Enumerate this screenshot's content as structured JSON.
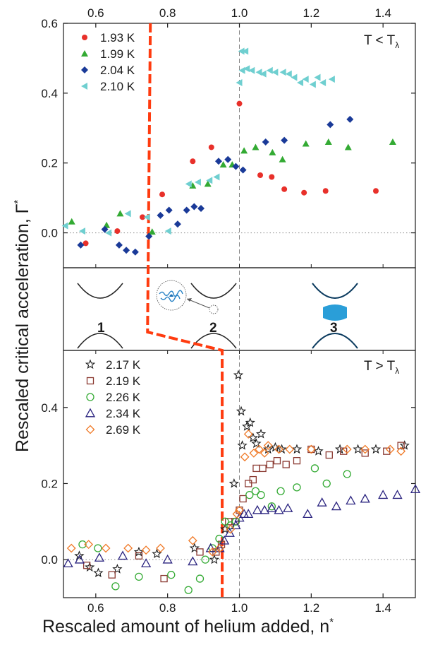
{
  "chart_data": {
    "type": "scatter",
    "xlabel": "Rescaled amount of helium added, n",
    "xlabel_sup": "*",
    "ylabel": "Rescaled critical acceleration, Γ",
    "ylabel_sup": "*",
    "xlim": [
      0.51,
      1.49
    ],
    "x_ticks": [
      "0.6",
      "0.8",
      "1.0",
      "1.2",
      "1.4"
    ],
    "x_tick_values": [
      0.6,
      0.8,
      1.0,
      1.2,
      1.4
    ],
    "reference_vline_x": 1.0,
    "phase_boundary_line": {
      "color": "#ff3b0f",
      "style": "dashed",
      "upper_x": 0.752,
      "lower_x": 0.952,
      "upper_connection_end": 0.75,
      "lower_connection_end": 0.95
    },
    "panels": [
      {
        "id": "top",
        "condition": "T < T",
        "condition_sub": "λ",
        "ylim": [
          -0.1,
          0.6
        ],
        "y_ticks": [
          "0.0",
          "0.2",
          "0.4",
          "0.6"
        ],
        "y_tick_values": [
          0.0,
          0.2,
          0.4,
          0.6
        ],
        "reference_hline_y": 0.0,
        "legend_position": "top-left",
        "series": [
          {
            "name": "1.93 K",
            "marker": "circle",
            "filled": true,
            "color": "#e8302a",
            "points": [
              [
                0.572,
                -0.03
              ],
              [
                0.66,
                0.005
              ],
              [
                0.73,
                0.045
              ],
              [
                0.785,
                0.11
              ],
              [
                0.87,
                0.205
              ],
              [
                0.922,
                0.245
              ],
              [
                1.0,
                0.37
              ],
              [
                1.058,
                0.165
              ],
              [
                1.09,
                0.16
              ],
              [
                1.125,
                0.125
              ],
              [
                1.18,
                0.115
              ],
              [
                1.24,
                0.12
              ],
              [
                1.38,
                0.12
              ]
            ]
          },
          {
            "name": "1.99 K",
            "marker": "triangle-up",
            "filled": true,
            "color": "#33aa33",
            "points": [
              [
                0.533,
                0.032
              ],
              [
                0.63,
                0.022
              ],
              [
                0.668,
                0.055
              ],
              [
                0.757,
                0.003
              ],
              [
                0.87,
                0.135
              ],
              [
                0.912,
                0.14
              ],
              [
                0.955,
                0.195
              ],
              [
                0.98,
                0.195
              ],
              [
                1.013,
                0.235
              ],
              [
                1.045,
                0.245
              ],
              [
                1.092,
                0.23
              ],
              [
                1.12,
                0.21
              ],
              [
                1.185,
                0.255
              ],
              [
                1.248,
                0.26
              ],
              [
                1.303,
                0.245
              ],
              [
                1.427,
                0.26
              ]
            ]
          },
          {
            "name": "2.04 K",
            "marker": "diamond",
            "filled": true,
            "color": "#1a3a98",
            "points": [
              [
                0.558,
                -0.035
              ],
              [
                0.625,
                0.01
              ],
              [
                0.665,
                -0.035
              ],
              [
                0.685,
                -0.05
              ],
              [
                0.71,
                -0.055
              ],
              [
                0.748,
                -0.01
              ],
              [
                0.78,
                0.05
              ],
              [
                0.804,
                0.065
              ],
              [
                0.828,
                0.025
              ],
              [
                0.853,
                0.065
              ],
              [
                0.874,
                0.075
              ],
              [
                0.893,
                0.07
              ],
              [
                0.942,
                0.205
              ],
              [
                0.968,
                0.21
              ],
              [
                0.99,
                0.19
              ],
              [
                1.01,
                0.18
              ],
              [
                1.073,
                0.26
              ],
              [
                1.125,
                0.265
              ],
              [
                1.253,
                0.31
              ],
              [
                1.308,
                0.325
              ]
            ]
          },
          {
            "name": "2.10 K",
            "marker": "triangle-left",
            "filled": true,
            "color": "#6fcfd0",
            "points": [
              [
                0.515,
                0.02
              ],
              [
                0.563,
                0.005
              ],
              [
                0.636,
                0.0
              ],
              [
                0.69,
                0.055
              ],
              [
                0.743,
                0.045
              ],
              [
                0.802,
                0.005
              ],
              [
                0.859,
                0.14
              ],
              [
                0.885,
                0.145
              ],
              [
                0.917,
                0.15
              ],
              [
                0.937,
                0.16
              ],
              [
                1.0,
                0.43
              ],
              [
                1.006,
                0.52
              ],
              [
                1.017,
                0.52
              ],
              [
                1.008,
                0.465
              ],
              [
                1.021,
                0.47
              ],
              [
                1.035,
                0.465
              ],
              [
                1.055,
                0.46
              ],
              [
                1.067,
                0.455
              ],
              [
                1.085,
                0.465
              ],
              [
                1.1,
                0.46
              ],
              [
                1.122,
                0.46
              ],
              [
                1.138,
                0.455
              ],
              [
                1.153,
                0.445
              ],
              [
                1.17,
                0.43
              ],
              [
                1.185,
                0.44
              ],
              [
                1.205,
                0.425
              ],
              [
                1.218,
                0.445
              ],
              [
                1.233,
                0.43
              ],
              [
                1.258,
                0.44
              ]
            ]
          }
        ]
      },
      {
        "id": "bottom",
        "condition": "T > T",
        "condition_sub": "λ",
        "ylim": [
          -0.1,
          0.55
        ],
        "y_ticks": [
          "0.0",
          "0.2",
          "0.4"
        ],
        "y_tick_values": [
          0.0,
          0.2,
          0.4
        ],
        "reference_hline_y": 0.0,
        "legend_position": "top-left",
        "series": [
          {
            "name": "2.17 K",
            "marker": "star",
            "filled": false,
            "color": "#1a1a1a",
            "points": [
              [
                0.554,
                0.01
              ],
              [
                0.583,
                -0.02
              ],
              [
                0.607,
                -0.035
              ],
              [
                0.66,
                -0.025
              ],
              [
                0.72,
                0.02
              ],
              [
                0.77,
                0.015
              ],
              [
                0.875,
                0.03
              ],
              [
                0.93,
                0.0
              ],
              [
                0.96,
                0.08
              ],
              [
                0.985,
                0.2
              ],
              [
                0.997,
                0.485
              ],
              [
                1.005,
                0.39
              ],
              [
                1.008,
                0.3
              ],
              [
                1.021,
                0.35
              ],
              [
                1.03,
                0.36
              ],
              [
                1.038,
                0.32
              ],
              [
                1.047,
                0.305
              ],
              [
                1.06,
                0.33
              ],
              [
                1.08,
                0.29
              ],
              [
                1.1,
                0.295
              ],
              [
                1.118,
                0.29
              ],
              [
                1.16,
                0.29
              ],
              [
                1.22,
                0.285
              ],
              [
                1.28,
                0.29
              ],
              [
                1.33,
                0.29
              ],
              [
                1.38,
                0.29
              ],
              [
                1.46,
                0.3
              ]
            ]
          },
          {
            "name": "2.19 K",
            "marker": "square",
            "filled": false,
            "color": "#8b3a32",
            "points": [
              [
                0.575,
                -0.015
              ],
              [
                0.645,
                -0.04
              ],
              [
                0.72,
                0.01
              ],
              [
                0.79,
                -0.05
              ],
              [
                0.89,
                0.02
              ],
              [
                0.935,
                0.02
              ],
              [
                0.95,
                0.04
              ],
              [
                0.97,
                0.1
              ],
              [
                0.988,
                0.1
              ],
              [
                1.0,
                0.13
              ],
              [
                1.01,
                0.16
              ],
              [
                1.025,
                0.2
              ],
              [
                1.038,
                0.21
              ],
              [
                1.047,
                0.24
              ],
              [
                1.065,
                0.24
              ],
              [
                1.085,
                0.25
              ],
              [
                1.105,
                0.26
              ],
              [
                1.13,
                0.25
              ],
              [
                1.16,
                0.26
              ],
              [
                1.2,
                0.29
              ],
              [
                1.25,
                0.275
              ],
              [
                1.29,
                0.285
              ],
              [
                1.35,
                0.28
              ],
              [
                1.41,
                0.285
              ],
              [
                1.45,
                0.3
              ]
            ]
          },
          {
            "name": "2.26 K",
            "marker": "circle",
            "filled": false,
            "color": "#33aa33",
            "points": [
              [
                0.563,
                0.04
              ],
              [
                0.606,
                0.03
              ],
              [
                0.655,
                -0.07
              ],
              [
                0.72,
                -0.045
              ],
              [
                0.81,
                -0.04
              ],
              [
                0.858,
                -0.08
              ],
              [
                0.89,
                -0.05
              ],
              [
                0.905,
                0.0
              ],
              [
                0.925,
                0.03
              ],
              [
                0.944,
                0.055
              ],
              [
                0.96,
                0.1
              ],
              [
                0.975,
                0.09
              ],
              [
                0.99,
                0.1
              ],
              [
                1.028,
                0.17
              ],
              [
                1.045,
                0.18
              ],
              [
                1.06,
                0.17
              ],
              [
                1.09,
                0.14
              ],
              [
                1.115,
                0.18
              ],
              [
                1.16,
                0.19
              ],
              [
                1.21,
                0.24
              ],
              [
                1.243,
                0.2
              ],
              [
                1.3,
                0.225
              ]
            ]
          },
          {
            "name": "2.34 K",
            "marker": "triangle-up",
            "filled": false,
            "color": "#2a237f",
            "points": [
              [
                0.523,
                -0.01
              ],
              [
                0.555,
                0.0
              ],
              [
                0.61,
                0.005
              ],
              [
                0.675,
                0.01
              ],
              [
                0.74,
                -0.01
              ],
              [
                0.8,
                0.0
              ],
              [
                0.87,
                -0.005
              ],
              [
                0.92,
                0.03
              ],
              [
                0.945,
                0.03
              ],
              [
                0.958,
                0.05
              ],
              [
                0.973,
                0.07
              ],
              [
                0.99,
                0.09
              ],
              [
                1.0,
                0.11
              ],
              [
                1.013,
                0.12
              ],
              [
                1.025,
                0.12
              ],
              [
                1.05,
                0.13
              ],
              [
                1.07,
                0.13
              ],
              [
                1.09,
                0.135
              ],
              [
                1.11,
                0.13
              ],
              [
                1.135,
                0.135
              ],
              [
                1.19,
                0.12
              ],
              [
                1.23,
                0.15
              ],
              [
                1.27,
                0.14
              ],
              [
                1.31,
                0.155
              ],
              [
                1.35,
                0.16
              ],
              [
                1.4,
                0.17
              ],
              [
                1.44,
                0.17
              ],
              [
                1.49,
                0.185
              ]
            ]
          },
          {
            "name": "2.69 K",
            "marker": "diamond",
            "filled": false,
            "color": "#f07a28",
            "points": [
              [
                0.532,
                0.03
              ],
              [
                0.58,
                0.04
              ],
              [
                0.628,
                0.03
              ],
              [
                0.69,
                0.03
              ],
              [
                0.74,
                0.025
              ],
              [
                0.78,
                0.03
              ],
              [
                0.87,
                0.05
              ],
              [
                0.925,
                0.02
              ],
              [
                0.945,
                0.03
              ],
              [
                0.975,
                0.08
              ],
              [
                0.993,
                0.12
              ],
              [
                1.0,
                0.13
              ],
              [
                1.015,
                0.27
              ],
              [
                1.025,
                0.33
              ],
              [
                1.04,
                0.28
              ],
              [
                1.055,
                0.29
              ],
              [
                1.07,
                0.28
              ],
              [
                1.08,
                0.3
              ],
              [
                1.11,
                0.29
              ],
              [
                1.14,
                0.29
              ],
              [
                1.2,
                0.29
              ],
              [
                1.3,
                0.29
              ],
              [
                1.35,
                0.29
              ],
              [
                1.42,
                0.29
              ],
              [
                1.45,
                0.285
              ]
            ]
          }
        ]
      }
    ],
    "regime_diagram": {
      "labels": [
        "1",
        "2",
        "3"
      ]
    }
  }
}
